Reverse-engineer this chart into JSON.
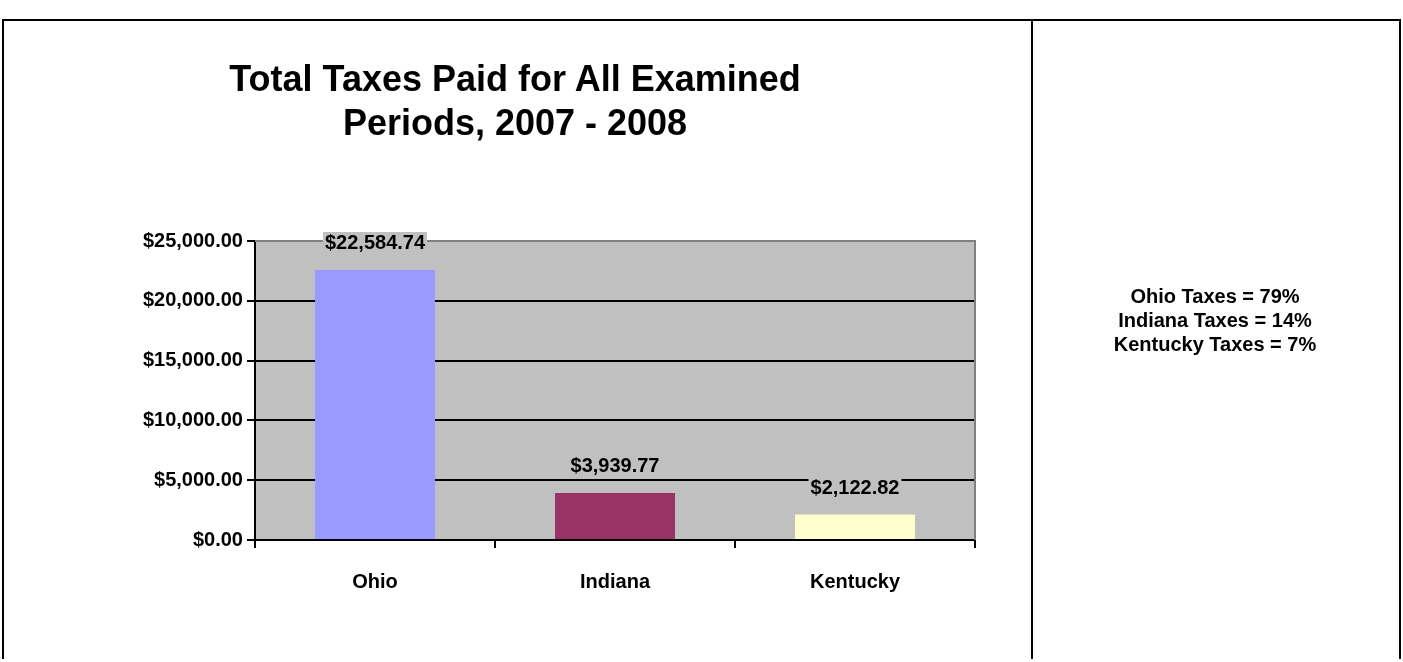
{
  "chart_data": {
    "type": "bar",
    "title": "Total Taxes Paid for All Examined Periods, 2007 - 2008",
    "categories": [
      "Ohio",
      "Indiana",
      "Kentucky"
    ],
    "values": [
      22584.74,
      3939.77,
      2122.82
    ],
    "colors": [
      "#9999ff",
      "#993366",
      "#ffffcc"
    ],
    "value_labels": [
      "$22,584.74",
      "$3,939.77",
      "$2,122.82"
    ],
    "ylim": [
      0,
      25000
    ],
    "yticks": [
      {
        "value": 0,
        "label": "$0.00"
      },
      {
        "value": 5000,
        "label": "$5,000.00"
      },
      {
        "value": 10000,
        "label": "$10,000.00"
      },
      {
        "value": 15000,
        "label": "$15,000.00"
      },
      {
        "value": 20000,
        "label": "$20,000.00"
      },
      {
        "value": 25000,
        "label": "$25,000.00"
      }
    ],
    "grid": "y",
    "legend": false,
    "annotations": [
      "Ohio Taxes = 79%",
      "Indiana Taxes = 14%",
      "Kentucky Taxes = 7%"
    ]
  }
}
